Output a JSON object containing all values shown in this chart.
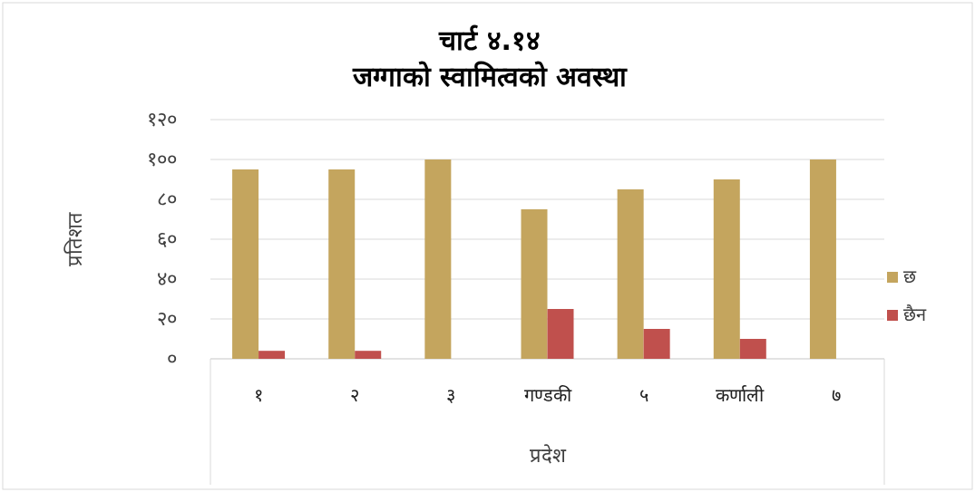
{
  "chart_data": {
    "type": "bar",
    "title": "चार्ट ४.१४",
    "subtitle": "जग्गाको स्वामित्वको अवस्था",
    "xlabel": "प्रदेश",
    "ylabel": "प्रतिशत",
    "categories": [
      "१",
      "२",
      "३",
      "गण्डकी",
      "५",
      "कर्णाली",
      "७"
    ],
    "series": [
      {
        "name": "छ",
        "color": "#c4a55e",
        "values": [
          95,
          95,
          100,
          75,
          85,
          90,
          100
        ]
      },
      {
        "name": "छैन",
        "color": "#c0504d",
        "values": [
          4,
          4,
          null,
          25,
          15,
          10,
          null
        ]
      }
    ],
    "ylim": [
      0,
      120
    ],
    "yticks": [
      {
        "value": 0,
        "label": "०"
      },
      {
        "value": 20,
        "label": "२०"
      },
      {
        "value": 40,
        "label": "४०"
      },
      {
        "value": 60,
        "label": "६०"
      },
      {
        "value": 80,
        "label": "८०"
      },
      {
        "value": 100,
        "label": "१००"
      },
      {
        "value": 120,
        "label": "१२०"
      }
    ],
    "grid": "y",
    "legend": "right"
  }
}
